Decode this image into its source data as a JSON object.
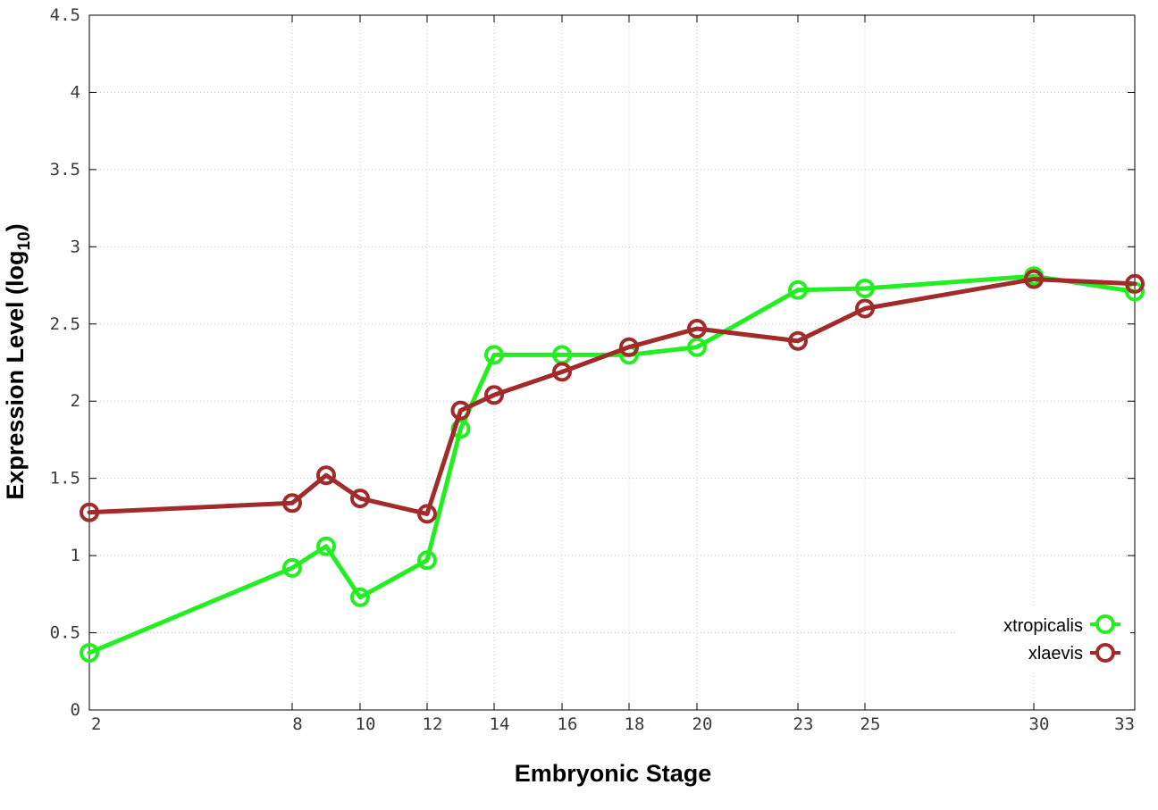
{
  "chart_data": {
    "type": "line",
    "xlabel": "Embryonic Stage",
    "ylabel_main": "Expression Level (log",
    "ylabel_sub": "10",
    "ylabel_close": ")",
    "x_ticks": [
      2,
      8,
      10,
      12,
      14,
      16,
      18,
      20,
      23,
      25,
      30,
      33
    ],
    "x_tick_labels": [
      "2",
      "8",
      "10",
      "12",
      "14",
      "16",
      "18",
      "20",
      "23",
      "25",
      "30",
      "33"
    ],
    "y_ticks": [
      0,
      0.5,
      1,
      1.5,
      2,
      2.5,
      3,
      3.5,
      4,
      4.5
    ],
    "y_tick_labels": [
      "0",
      "0.5",
      "1",
      "1.5",
      "2",
      "2.5",
      "3",
      "3.5",
      "4",
      "4.5"
    ],
    "ylim": [
      0,
      4.5
    ],
    "grid": true,
    "legend_position": "bottom-right",
    "series": [
      {
        "name": "xtropicalis",
        "color": "#22ee22",
        "points": [
          [
            2,
            0.37
          ],
          [
            8,
            0.92
          ],
          [
            9,
            1.06
          ],
          [
            10,
            0.73
          ],
          [
            12,
            0.97
          ],
          [
            13,
            1.82
          ],
          [
            14,
            2.3
          ],
          [
            16,
            2.3
          ],
          [
            18,
            2.3
          ],
          [
            20,
            2.35
          ],
          [
            23,
            2.72
          ],
          [
            25,
            2.73
          ],
          [
            30,
            2.81
          ],
          [
            33,
            2.71
          ]
        ]
      },
      {
        "name": "xlaevis",
        "color": "#a12a2a",
        "points": [
          [
            2,
            1.28
          ],
          [
            8,
            1.34
          ],
          [
            9,
            1.52
          ],
          [
            10,
            1.37
          ],
          [
            12,
            1.27
          ],
          [
            13,
            1.94
          ],
          [
            14,
            2.04
          ],
          [
            16,
            2.19
          ],
          [
            18,
            2.35
          ],
          [
            20,
            2.47
          ],
          [
            23,
            2.39
          ],
          [
            25,
            2.6
          ],
          [
            30,
            2.79
          ],
          [
            33,
            2.76
          ]
        ]
      }
    ]
  }
}
